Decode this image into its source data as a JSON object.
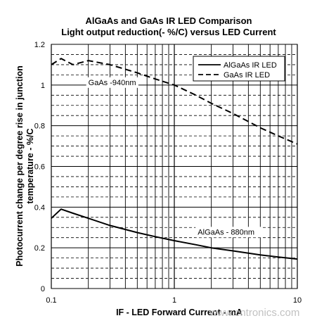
{
  "chart_data": {
    "type": "line",
    "title": "AlGaAs and GaAs IR LED Comparison",
    "subtitle": "Light output reduction(- %/C) versus LED Current",
    "xlabel": "IF - LED Forward Current - mA",
    "ylabel": "Photocurrent change per degree rise in junction temperature - %/C",
    "x_scale": "log",
    "xlim": [
      0.1,
      10
    ],
    "ylim": [
      0,
      1.2
    ],
    "x_ticks": [
      "0.1",
      "1",
      "10"
    ],
    "y_ticks": [
      "0",
      "0.2",
      "0.4",
      "0.6",
      "0.8",
      "1",
      "1.2"
    ],
    "grid": true,
    "legend_position": "top-right",
    "series": [
      {
        "name": "AlGaAs IR LED",
        "style": "solid",
        "x": [
          0.1,
          0.12,
          0.15,
          0.2,
          0.3,
          0.5,
          0.7,
          1,
          1.5,
          2,
          3,
          5,
          7,
          10
        ],
        "y": [
          0.345,
          0.39,
          0.37,
          0.345,
          0.31,
          0.275,
          0.255,
          0.235,
          0.215,
          0.2,
          0.185,
          0.165,
          0.155,
          0.145
        ]
      },
      {
        "name": "GaAs IR LED",
        "style": "dashed",
        "x": [
          0.1,
          0.12,
          0.15,
          0.2,
          0.3,
          0.5,
          0.7,
          1,
          1.5,
          2,
          3,
          5,
          7,
          10
        ],
        "y": [
          1.1,
          1.13,
          1.1,
          1.12,
          1.1,
          1.06,
          1.03,
          1.0,
          0.95,
          0.91,
          0.86,
          0.79,
          0.75,
          0.71
        ]
      }
    ],
    "annotations": [
      {
        "text": "GaAs -940nm",
        "x": 0.2,
        "y": 1.0
      },
      {
        "text": "AlGaAs - 880nm",
        "x": 1.55,
        "y": 0.265
      }
    ]
  },
  "watermark": "www.cntronics.com"
}
